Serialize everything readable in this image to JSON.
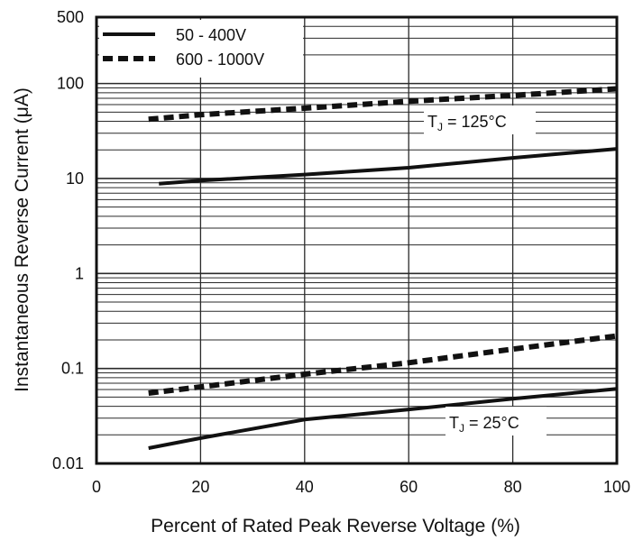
{
  "chart_data": {
    "type": "line",
    "xlabel": "Percent of Rated Peak Reverse Voltage (%)",
    "ylabel": "Instantaneous Reverse Current (μA)",
    "y_scale": "log",
    "xlim": [
      0,
      100
    ],
    "ylim": [
      0.01,
      500
    ],
    "x_ticks": [
      "0",
      "20",
      "40",
      "60",
      "80",
      "100"
    ],
    "y_ticks": [
      "0.01",
      "0.1",
      "1",
      "10",
      "100",
      "500"
    ],
    "y_tick_values": [
      0.01,
      0.1,
      1,
      10,
      100,
      500
    ],
    "grid": true,
    "legend_position": "top-left",
    "legend": [
      {
        "label": "50 - 400V",
        "style": "solid"
      },
      {
        "label": "600 - 1000V",
        "style": "dashed"
      }
    ],
    "annotations": [
      {
        "id": "tj125",
        "sub": "J",
        "text": " = 125°C"
      },
      {
        "id": "tj25",
        "sub": "J",
        "text": " = 25°C"
      }
    ],
    "series": [
      {
        "group": "50 - 400V",
        "condition": "TJ = 125°C",
        "style": "solid",
        "x": [
          12,
          20,
          40,
          60,
          80,
          100
        ],
        "y": [
          8.8,
          9.5,
          11,
          13,
          16.5,
          20.5
        ]
      },
      {
        "group": "600 - 1000V",
        "condition": "TJ = 125°C",
        "style": "dashed",
        "x": [
          10,
          20,
          40,
          60,
          80,
          100
        ],
        "y": [
          42,
          47,
          55,
          65,
          75,
          88
        ]
      },
      {
        "group": "50 - 400V",
        "condition": "TJ = 25°C",
        "style": "solid",
        "x": [
          10,
          20,
          40,
          60,
          80,
          100
        ],
        "y": [
          0.0145,
          0.0185,
          0.029,
          0.037,
          0.048,
          0.061
        ]
      },
      {
        "group": "600 - 1000V",
        "condition": "TJ = 25°C",
        "style": "dashed",
        "x": [
          10,
          20,
          40,
          60,
          80,
          100
        ],
        "y": [
          0.055,
          0.064,
          0.087,
          0.115,
          0.16,
          0.22
        ]
      }
    ],
    "colors": {
      "line": "#111111",
      "grid": "#2a2a2a",
      "background": "#ffffff"
    }
  }
}
